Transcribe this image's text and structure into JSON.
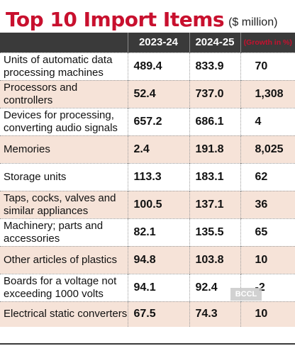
{
  "title": {
    "main": "Top 10 Import Items",
    "unit": "($ million)"
  },
  "table": {
    "headers": [
      "",
      "2023-24",
      "2024-25",
      "(Growth in %)"
    ],
    "rows": [
      {
        "item": "Units of automatic data processing machines",
        "y2023": "489.4",
        "y2024": "833.9",
        "growth": "70"
      },
      {
        "item": "Processors and controllers",
        "y2023": "52.4",
        "y2024": "737.0",
        "growth": "1,308"
      },
      {
        "item": "Devices for processing, converting audio signals",
        "y2023": "657.2",
        "y2024": "686.1",
        "growth": "4"
      },
      {
        "item": "Memories",
        "y2023": "2.4",
        "y2024": "191.8",
        "growth": "8,025"
      },
      {
        "item": "Storage units",
        "y2023": "113.3",
        "y2024": "183.1",
        "growth": "62"
      },
      {
        "item": "Taps, cocks, valves and similar appliances",
        "y2023": "100.5",
        "y2024": "137.1",
        "growth": "36"
      },
      {
        "item": "Machinery; parts and accessories",
        "y2023": "82.1",
        "y2024": "135.5",
        "growth": "65"
      },
      {
        "item": "Other articles of plastics",
        "y2023": "94.8",
        "y2024": "103.8",
        "growth": "10"
      },
      {
        "item": "Boards for a voltage not exceeding 1000 volts",
        "y2023": "94.1",
        "y2024": "92.4",
        "growth": "-2"
      },
      {
        "item": "Electrical static converters",
        "y2023": "67.5",
        "y2024": "74.3",
        "growth": "10"
      }
    ]
  },
  "watermark": "BCCL",
  "colors": {
    "title": "#c8102e",
    "header_bg": "#3a3a3a",
    "shade_row": "#f6e3d8"
  }
}
